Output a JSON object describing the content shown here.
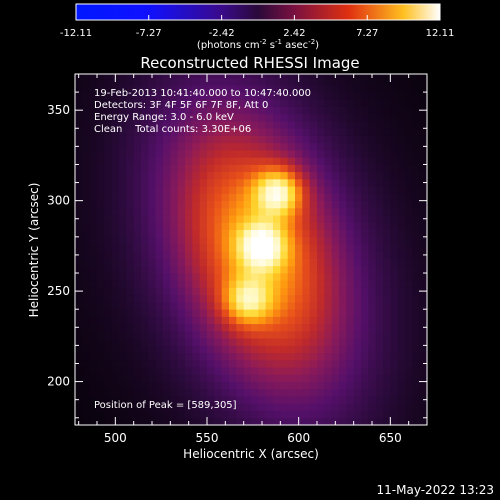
{
  "chart_data": {
    "type": "heatmap",
    "title": "Reconstructed RHESSI Image",
    "xlabel": "Heliocentric X (arcsec)",
    "ylabel": "Heliocentric Y (arcsec)",
    "xlim": [
      478,
      670
    ],
    "ylim": [
      176,
      370
    ],
    "x_ticks": [
      500,
      550,
      600,
      650
    ],
    "y_ticks": [
      200,
      250,
      300,
      350
    ],
    "grid": false,
    "colorbar": {
      "min": -12.11,
      "max": 12.11,
      "tick_values": [
        -12.11,
        -7.27,
        -2.42,
        2.42,
        7.27,
        12.11
      ],
      "tick_labels": [
        "-12.11",
        "-7.27",
        "-2.42",
        "2.42",
        "7.27",
        "12.11"
      ],
      "unit_label": "(photons cm",
      "unit_exp1": "-2",
      "unit_mid": " s",
      "unit_exp2": "-1",
      "unit_mid2": " asec",
      "unit_exp3": "-2",
      "unit_end": ")"
    },
    "annotations": [
      "19-Feb-2013 10:41:40.000 to 10:47:40.000",
      "Detectors: 3F 4F 5F 6F 7F 8F, Att 0",
      "Energy Range: 3.0 - 6.0 keV",
      "Clean    Total counts: 3.30E+06"
    ],
    "peak_label": "Position of Peak = [589,305]",
    "peak_position": [
      589,
      305
    ],
    "sources": [
      {
        "x": 589,
        "y": 305,
        "amplitude": 12.11
      },
      {
        "x": 580,
        "y": 275,
        "amplitude": 11.4
      },
      {
        "x": 572,
        "y": 245,
        "amplitude": 10.6
      }
    ],
    "colormap": [
      "#000000",
      "#2a0a3a",
      "#55106a",
      "#8a1a5a",
      "#c02a2a",
      "#e8501a",
      "#ff9a10",
      "#ffd830",
      "#fff6b0",
      "#ffffff"
    ]
  },
  "footer": {
    "timestamp": "11-May-2022 13:23"
  }
}
